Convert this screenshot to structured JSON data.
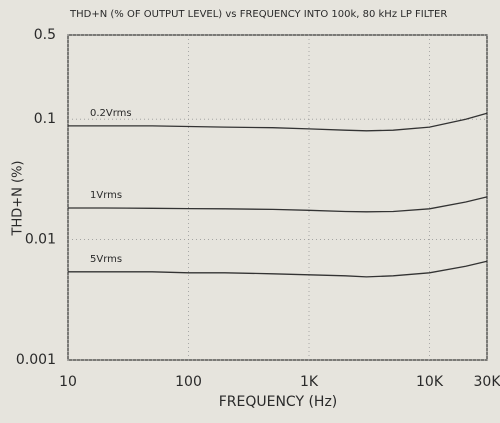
{
  "chart_data": {
    "type": "line",
    "title": "THD+N (% OF OUTPUT LEVEL) vs FREQUENCY INTO 100k, 80 kHz LP FILTER",
    "xlabel": "FREQUENCY (Hz)",
    "ylabel": "THD+N (%)",
    "x": [
      10,
      20,
      50,
      100,
      200,
      500,
      1000,
      2000,
      3000,
      5000,
      10000,
      20000,
      30000
    ],
    "series": [
      {
        "name": "0.2Vrms",
        "color": "#333333",
        "values": [
          0.088,
          0.088,
          0.088,
          0.087,
          0.086,
          0.085,
          0.083,
          0.081,
          0.08,
          0.081,
          0.086,
          0.1,
          0.112
        ]
      },
      {
        "name": "1Vrms",
        "color": "#333333",
        "values": [
          0.0183,
          0.0183,
          0.0182,
          0.0181,
          0.018,
          0.0178,
          0.0175,
          0.0171,
          0.017,
          0.0171,
          0.018,
          0.0205,
          0.0226
        ]
      },
      {
        "name": "5Vrms",
        "color": "#333333",
        "values": [
          0.0054,
          0.0054,
          0.0054,
          0.0053,
          0.0053,
          0.0052,
          0.0051,
          0.005,
          0.0049,
          0.005,
          0.0053,
          0.006,
          0.0066
        ]
      }
    ],
    "xlim": [
      10,
      30000
    ],
    "ylim": [
      0.001,
      0.5
    ],
    "xticks": [
      10,
      100,
      {
        "value": 1000,
        "label": "1K"
      },
      {
        "value": 10000,
        "label": "10K"
      },
      {
        "value": 30000,
        "label": "30K"
      }
    ],
    "yticks": [
      0.001,
      0.01,
      0.1,
      0.5
    ],
    "xscale": "log",
    "yscale": "log",
    "grid": true
  }
}
